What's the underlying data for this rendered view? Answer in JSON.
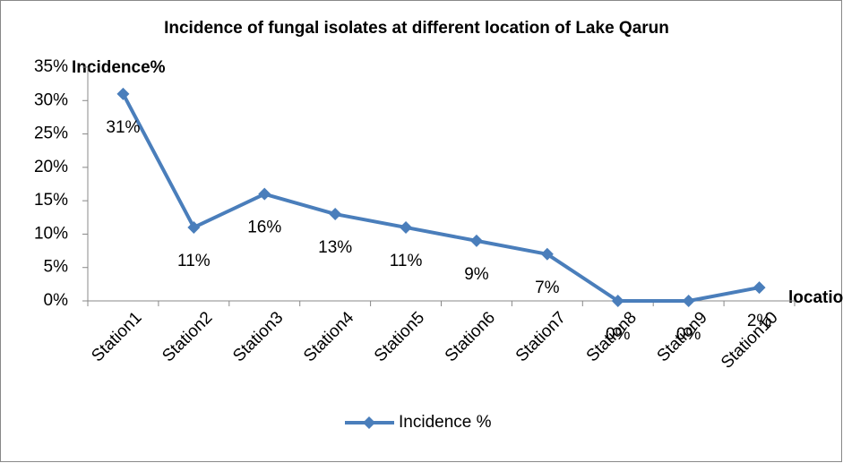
{
  "chart_data": {
    "type": "line",
    "title": "Incidence of fungal isolates at different location of Lake Qarun",
    "y_label": "Incidence%",
    "x_label": "location",
    "categories": [
      "Station1",
      "Station2",
      "Station3",
      "Station4",
      "Station5",
      "Station6",
      "Station7",
      "Station8",
      "Station9",
      "Station10"
    ],
    "series": [
      {
        "name": "Incidence %",
        "color": "#4a7ebb",
        "values": [
          31,
          11,
          16,
          13,
          11,
          9,
          7,
          0,
          0,
          2
        ],
        "value_labels": [
          "31%",
          "11%",
          "16%",
          "13%",
          "11%",
          "9%",
          "7%",
          "0%",
          "0%",
          "2%"
        ]
      }
    ],
    "ylim": [
      0,
      35
    ],
    "yticks": [
      {
        "value": 0,
        "label": "0%"
      },
      {
        "value": 5,
        "label": "5%"
      },
      {
        "value": 10,
        "label": "10%"
      },
      {
        "value": 15,
        "label": "15%"
      },
      {
        "value": 20,
        "label": "20%"
      },
      {
        "value": 25,
        "label": "25%"
      },
      {
        "value": 30,
        "label": "30%"
      },
      {
        "value": 35,
        "label": "35%"
      }
    ],
    "grid": false,
    "legend": "bottom"
  }
}
